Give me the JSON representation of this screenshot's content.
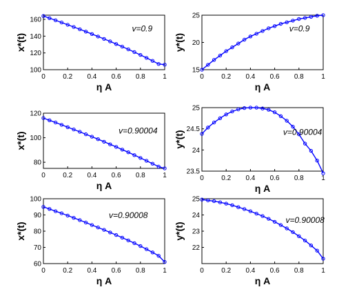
{
  "chart_data": [
    {
      "type": "line",
      "position": "row1-left",
      "xlabel": "η A",
      "ylabel": "x*(t)",
      "annotation": "v=0.9",
      "xlim": [
        0,
        1
      ],
      "ylim": [
        100,
        165
      ],
      "xticks": [
        "0",
        "0.2",
        "0.4",
        "0.6",
        "0.8",
        "1"
      ],
      "yticks": [
        "100",
        "120",
        "140",
        "160"
      ],
      "series": [
        {
          "color": "#0000ff",
          "x": [
            0,
            0.05,
            0.1,
            0.15,
            0.2,
            0.25,
            0.3,
            0.35,
            0.4,
            0.45,
            0.5,
            0.55,
            0.6,
            0.65,
            0.7,
            0.75,
            0.8,
            0.85,
            0.9,
            0.95,
            1
          ],
          "y": [
            164,
            161.5,
            158.9,
            156.3,
            153.6,
            150.9,
            148.2,
            145.4,
            142.5,
            139.6,
            136.7,
            133.7,
            130.6,
            127.5,
            124.3,
            121,
            117.6,
            114.1,
            110.5,
            106.8,
            106
          ]
        }
      ]
    },
    {
      "type": "line",
      "position": "row1-right",
      "xlabel": "η A",
      "ylabel": "y*(t)",
      "annotation": "v=0.9",
      "xlim": [
        0,
        1
      ],
      "ylim": [
        15,
        25
      ],
      "xticks": [
        "0",
        "0.2",
        "0.4",
        "0.6",
        "0.8",
        "1"
      ],
      "yticks": [
        "15",
        "20",
        "25"
      ],
      "series": [
        {
          "color": "#0000ff",
          "x": [
            0,
            0.05,
            0.1,
            0.15,
            0.2,
            0.25,
            0.3,
            0.35,
            0.4,
            0.45,
            0.5,
            0.55,
            0.6,
            0.65,
            0.7,
            0.75,
            0.8,
            0.85,
            0.9,
            0.95,
            1
          ],
          "y": [
            15,
            15.9,
            16.8,
            17.6,
            18.4,
            19.1,
            19.8,
            20.5,
            21.1,
            21.6,
            22.1,
            22.6,
            23,
            23.4,
            23.7,
            24,
            24.3,
            24.5,
            24.7,
            24.9,
            25
          ]
        }
      ]
    },
    {
      "type": "line",
      "position": "row2-left",
      "xlabel": "η A",
      "ylabel": "x*(t)",
      "annotation": "v=0.90004",
      "xlim": [
        0,
        1
      ],
      "ylim": [
        75,
        120
      ],
      "xticks": [
        "0",
        "0.2",
        "0.4",
        "0.6",
        "0.8",
        "1"
      ],
      "yticks": [
        "80",
        "100",
        "120"
      ],
      "series": [
        {
          "color": "#0000ff",
          "x": [
            0,
            0.05,
            0.1,
            0.15,
            0.2,
            0.25,
            0.3,
            0.35,
            0.4,
            0.45,
            0.5,
            0.55,
            0.6,
            0.65,
            0.7,
            0.75,
            0.8,
            0.85,
            0.9,
            0.95,
            1
          ],
          "y": [
            116,
            114.2,
            112.4,
            110.5,
            108.6,
            106.7,
            104.8,
            102.8,
            100.8,
            98.8,
            96.7,
            94.6,
            92.5,
            90.3,
            88.1,
            85.8,
            83.5,
            81.2,
            78.8,
            76.4,
            75
          ]
        }
      ]
    },
    {
      "type": "line",
      "position": "row2-right",
      "xlabel": "η A",
      "ylabel": "y*(t)",
      "annotation": "v=0.90004",
      "xlim": [
        0,
        1
      ],
      "ylim": [
        23.5,
        25
      ],
      "xticks": [
        "0",
        "0.2",
        "0.4",
        "0.6",
        "0.8",
        "1"
      ],
      "yticks": [
        "23.5",
        "24",
        "24.5",
        "25"
      ],
      "series": [
        {
          "color": "#0000ff",
          "x": [
            0,
            0.05,
            0.1,
            0.15,
            0.2,
            0.25,
            0.3,
            0.35,
            0.4,
            0.45,
            0.5,
            0.55,
            0.6,
            0.65,
            0.7,
            0.75,
            0.8,
            0.85,
            0.9,
            0.95,
            1
          ],
          "y": [
            24.38,
            24.53,
            24.65,
            24.75,
            24.84,
            24.91,
            24.96,
            24.99,
            25,
            25,
            24.98,
            24.95,
            24.89,
            24.8,
            24.69,
            24.55,
            24.37,
            24.15,
            23.98,
            23.75,
            23.45
          ]
        }
      ]
    },
    {
      "type": "line",
      "position": "row3-left",
      "xlabel": "η A",
      "ylabel": "x*(t)",
      "annotation": "v=0.90008",
      "xlim": [
        0,
        1
      ],
      "ylim": [
        60,
        100
      ],
      "xticks": [
        "0",
        "0.2",
        "0.4",
        "0.6",
        "0.8",
        "1"
      ],
      "yticks": [
        "60",
        "70",
        "80",
        "90",
        "100"
      ],
      "series": [
        {
          "color": "#0000ff",
          "x": [
            0,
            0.05,
            0.1,
            0.15,
            0.2,
            0.25,
            0.3,
            0.35,
            0.4,
            0.45,
            0.5,
            0.55,
            0.6,
            0.65,
            0.7,
            0.75,
            0.8,
            0.85,
            0.9,
            0.95,
            1
          ],
          "y": [
            95,
            93.7,
            92.3,
            91,
            89.6,
            88.2,
            86.8,
            85.3,
            83.8,
            82.3,
            80.8,
            79.2,
            77.6,
            76,
            74.3,
            72.6,
            70.8,
            68.9,
            66.9,
            64.8,
            61
          ]
        }
      ]
    },
    {
      "type": "line",
      "position": "row3-right",
      "xlabel": "η A",
      "ylabel": "y*(t)",
      "annotation": "v=0.90008",
      "xlim": [
        0,
        1
      ],
      "ylim": [
        21,
        25
      ],
      "xticks": [
        "0",
        "0.2",
        "0.4",
        "0.6",
        "0.8",
        "1"
      ],
      "yticks": [
        "22",
        "23",
        "24",
        "25"
      ],
      "series": [
        {
          "color": "#0000ff",
          "x": [
            0,
            0.05,
            0.1,
            0.15,
            0.2,
            0.25,
            0.3,
            0.35,
            0.4,
            0.45,
            0.5,
            0.55,
            0.6,
            0.65,
            0.7,
            0.75,
            0.8,
            0.85,
            0.9,
            0.95,
            1
          ],
          "y": [
            24.95,
            24.9,
            24.85,
            24.78,
            24.7,
            24.6,
            24.48,
            24.36,
            24.23,
            24.08,
            23.93,
            23.76,
            23.58,
            23.38,
            23.17,
            22.94,
            22.69,
            22.42,
            22.12,
            21.8,
            21.3
          ]
        }
      ]
    }
  ]
}
